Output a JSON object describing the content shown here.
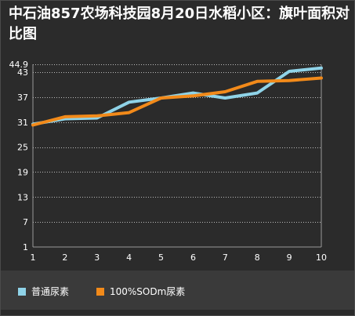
{
  "chart_data": {
    "type": "line",
    "title": "中石油857农场科技园8月20日水稻小区：旗叶面积对比图",
    "xlabel": "",
    "ylabel": "",
    "x": [
      1,
      2,
      3,
      4,
      5,
      6,
      7,
      8,
      9,
      10
    ],
    "x_tick_labels": [
      "1",
      "2",
      "3",
      "4",
      "5",
      "6",
      "7",
      "8",
      "9",
      "10"
    ],
    "y_tick_labels": [
      "44.9",
      "43",
      "37",
      "31",
      "25",
      "19",
      "13",
      "7",
      "1"
    ],
    "y_ticks": [
      44.9,
      43,
      37,
      31,
      25,
      19,
      13,
      7,
      1
    ],
    "ylim": [
      1,
      44.9
    ],
    "grid": true,
    "legend_position": "bottom",
    "series": [
      {
        "name": "普通尿素",
        "color": "#8fd3e8",
        "values": [
          30.5,
          31.8,
          32.0,
          35.8,
          36.8,
          38.0,
          36.8,
          38.0,
          43.2,
          44.0
        ]
      },
      {
        "name": "100%SODm尿素",
        "color": "#f28a1a",
        "values": [
          30.3,
          32.3,
          32.5,
          33.3,
          36.8,
          37.3,
          38.3,
          40.8,
          41.0,
          41.6
        ]
      }
    ]
  }
}
